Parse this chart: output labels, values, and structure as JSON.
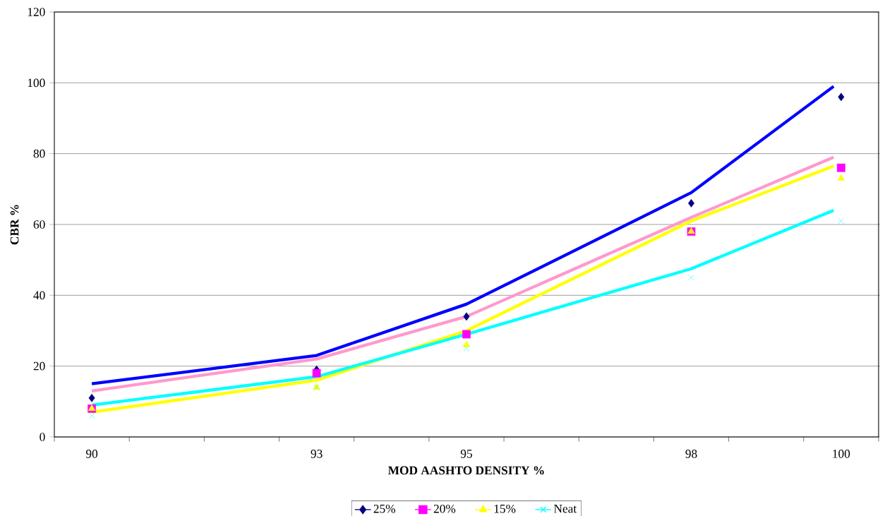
{
  "chart_data": {
    "type": "scatter",
    "xlabel": "MOD AASHTO DENSITY %",
    "ylabel": "CBR %",
    "xlim": [
      89.5,
      100.5
    ],
    "ylim": [
      0,
      120
    ],
    "xticks": [
      90,
      93,
      95,
      98,
      100,
      {
        "value": 89.5,
        "label": null
      },
      {
        "value": 90.5,
        "label": null
      },
      {
        "value": 91.5,
        "label": null
      },
      {
        "value": 92.5,
        "label": null
      },
      {
        "value": 93.5,
        "label": null
      },
      {
        "value": 94.5,
        "label": null
      },
      {
        "value": 95.5,
        "label": null
      },
      {
        "value": 96.5,
        "label": null
      },
      {
        "value": 97.5,
        "label": null
      },
      {
        "value": 98.5,
        "label": null
      },
      {
        "value": 99.5,
        "label": null
      },
      {
        "value": 100.5,
        "label": null
      }
    ],
    "yticks": [
      0,
      20,
      40,
      60,
      80,
      100,
      120
    ],
    "grid": "y",
    "legend": "bottom",
    "x": [
      90,
      93,
      95,
      98,
      100
    ],
    "series": [
      {
        "name": "25%",
        "color": "#000080",
        "marker": "diamond",
        "values": [
          11,
          19,
          34,
          66,
          96
        ]
      },
      {
        "name": "20%",
        "color": "#ff00ff",
        "marker": "square",
        "values": [
          8,
          18,
          29,
          58,
          76
        ]
      },
      {
        "name": "15%",
        "color": "#ffff00",
        "marker": "triangle",
        "values": [
          8,
          14,
          26,
          58,
          73
        ]
      },
      {
        "name": "Neat",
        "color": "#00ffff",
        "marker": "cross",
        "values": [
          6,
          14,
          25,
          45,
          61
        ]
      },
      {
        "type": "line",
        "color": "#0000ff",
        "x": [
          90,
          93,
          95,
          98,
          99.9
        ],
        "values": [
          15,
          23,
          37.5,
          69,
          99
        ]
      },
      {
        "type": "line",
        "color": "#ff99cc",
        "x": [
          90,
          93,
          95,
          98,
          99.9
        ],
        "values": [
          13,
          22,
          34,
          62,
          79
        ]
      },
      {
        "type": "line",
        "color": "#ffff00",
        "x": [
          90,
          93,
          95,
          98,
          99.9
        ],
        "values": [
          7,
          16,
          30,
          61,
          76.5
        ]
      },
      {
        "type": "line",
        "color": "#00ffff",
        "x": [
          90,
          93,
          95,
          98,
          99.9
        ],
        "values": [
          9,
          17,
          29,
          47.5,
          64
        ]
      }
    ]
  }
}
